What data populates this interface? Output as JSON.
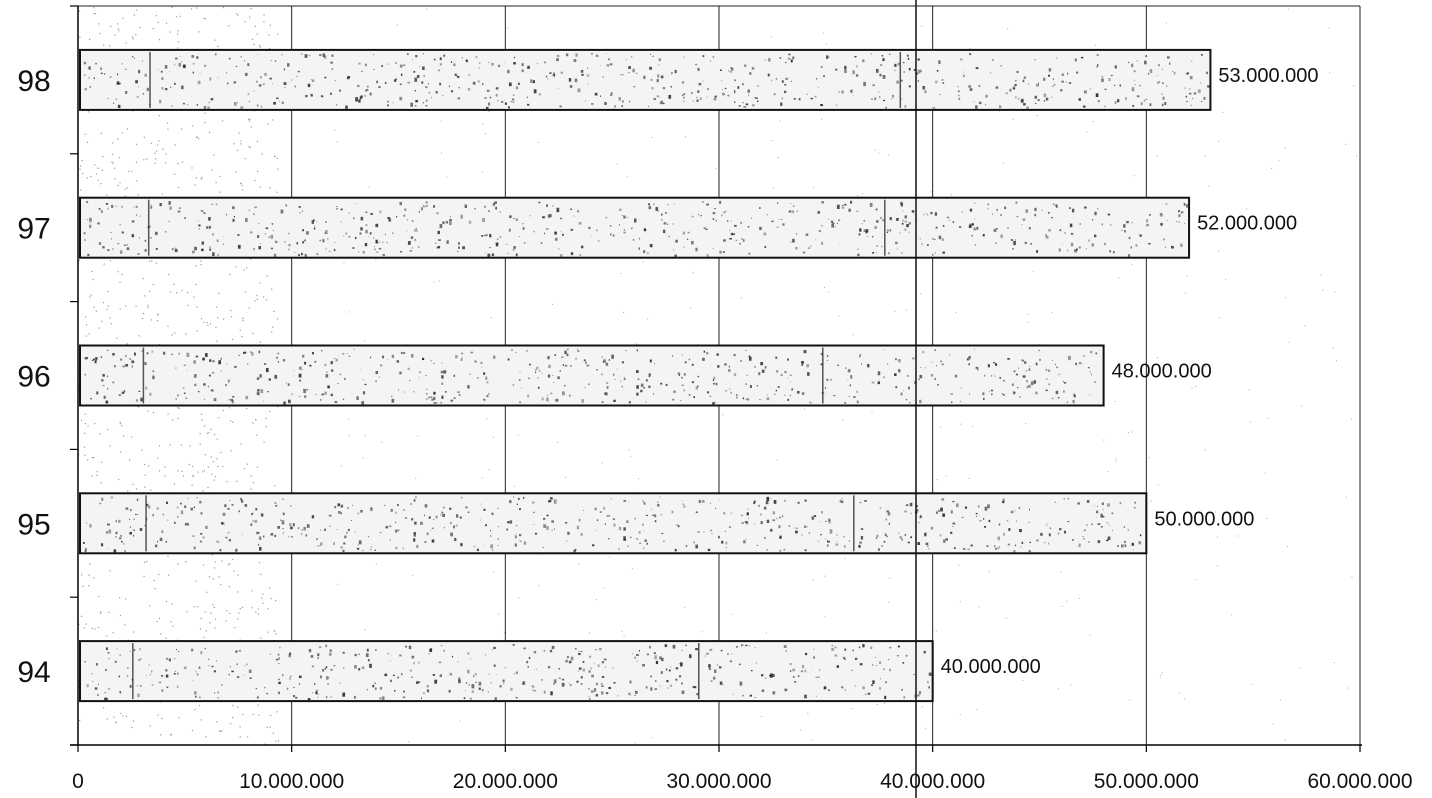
{
  "chart_data": {
    "type": "bar",
    "orientation": "horizontal",
    "categories": [
      "94",
      "95",
      "96",
      "97",
      "98"
    ],
    "values": [
      40000000,
      50000000,
      48000000,
      52000000,
      53000000
    ],
    "data_labels": [
      "40.000.000",
      "50.000.000",
      "48.000.000",
      "52.000.000",
      "53.000.000"
    ],
    "title": "",
    "xlabel": "",
    "ylabel": "",
    "xlim": [
      0,
      60000000
    ],
    "x_ticks": [
      0,
      10000000,
      20000000,
      30000000,
      40000000,
      50000000,
      60000000
    ],
    "x_tick_labels": [
      "0",
      "10.000.000",
      "20.000.000",
      "30.000.000",
      "40.000.000",
      "50.000.000",
      "60.000.000"
    ],
    "grid": true,
    "legend": "none",
    "colors": {
      "bar_fill": "#f4f4f4",
      "bar_stroke": "#111111",
      "grid": "#222222",
      "texture": "#222222"
    }
  }
}
